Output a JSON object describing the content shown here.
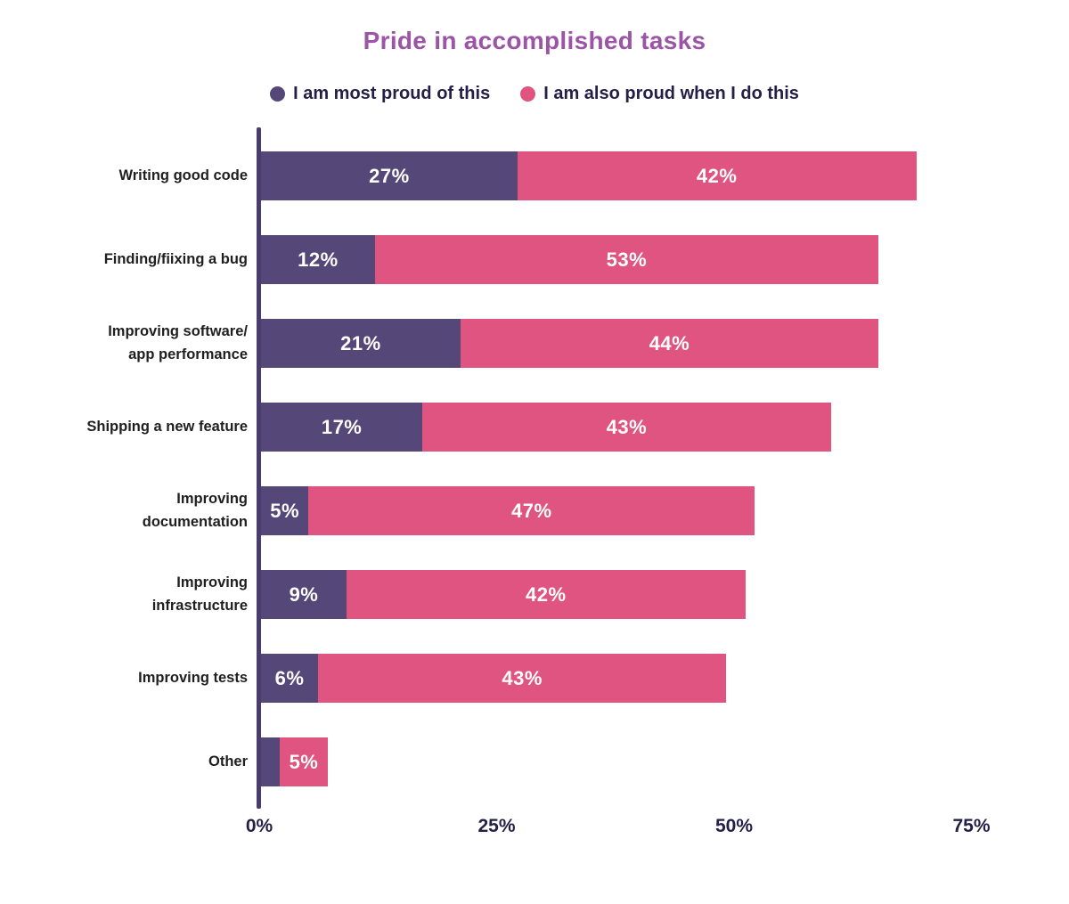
{
  "chart_data": {
    "type": "bar",
    "orientation": "horizontal",
    "stacked": true,
    "title": "Pride in accomplished tasks",
    "legend_position": "top",
    "grid": false,
    "categories": [
      "Writing good code",
      "Finding/fiixing a bug",
      "Improving software/\napp performance",
      "Shipping a new feature",
      "Improving\ndocumentation",
      "Improving\ninfrastructure",
      "Improving tests",
      "Other"
    ],
    "series": [
      {
        "name": "I am most proud of this",
        "color": "#564779",
        "values": [
          27,
          12,
          21,
          17,
          5,
          9,
          6,
          2
        ],
        "data_labels": [
          "27%",
          "12%",
          "21%",
          "17%",
          "5%",
          "9%",
          "6%",
          ""
        ]
      },
      {
        "name": "I am also proud when I do this",
        "color": "#df5480",
        "values": [
          42,
          53,
          44,
          43,
          47,
          42,
          43,
          5
        ],
        "data_labels": [
          "42%",
          "53%",
          "44%",
          "43%",
          "47%",
          "42%",
          "43%",
          "5%"
        ]
      }
    ],
    "x_axis": {
      "ticks": [
        {
          "label": "0%",
          "value": 0
        },
        {
          "label": "25%",
          "value": 25
        },
        {
          "label": "50%",
          "value": 50
        },
        {
          "label": "75%",
          "value": 75
        }
      ],
      "range": [
        0,
        81
      ]
    }
  },
  "colors": {
    "title": "#9c55a6",
    "axis_line": "#4a3c6e",
    "tick_text": "#241f47",
    "legend_text": "#241f47",
    "category_text": "#1f1f1f",
    "bar_label_text": "#ffffff",
    "background": "#ffffff"
  }
}
